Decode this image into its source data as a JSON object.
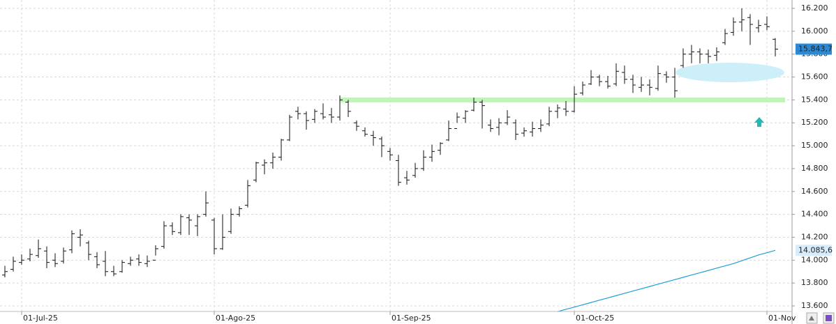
{
  "chart_data": {
    "type": "ohlc",
    "categories": [
      null,
      null,
      "01-Jul-25",
      null,
      null,
      null,
      null,
      null,
      null,
      null,
      null,
      null,
      null,
      null,
      null,
      null,
      null,
      null,
      null,
      null,
      null,
      null,
      null,
      null,
      null,
      "01-Ago-25",
      null,
      null,
      null,
      null,
      null,
      null,
      null,
      null,
      null,
      null,
      null,
      null,
      null,
      null,
      null,
      null,
      null,
      null,
      null,
      null,
      "01-Sep-25",
      null,
      null,
      null,
      null,
      null,
      null,
      null,
      null,
      null,
      null,
      null,
      null,
      null,
      null,
      null,
      null,
      null,
      null,
      null,
      null,
      null,
      "01-Oct-25",
      null,
      null,
      null,
      null,
      null,
      null,
      null,
      null,
      null,
      null,
      null,
      null,
      null,
      null,
      null,
      null,
      null,
      null,
      null,
      null,
      null,
      null,
      "01-Nov",
      null
    ],
    "ohlc": {
      "color": "#111111",
      "open": [
        13870,
        13920,
        13980,
        14010,
        14040,
        14080,
        14000,
        13990,
        14090,
        14200,
        14150,
        14030,
        13990,
        13900,
        13900,
        13970,
        14010,
        13970,
        14000,
        14120,
        14300,
        14240,
        14370,
        14300,
        14400,
        14350,
        14100,
        14250,
        14400,
        14480,
        14700,
        14830,
        14850,
        14900,
        15050,
        15300,
        15280,
        15230,
        15280,
        15270,
        15250,
        15380,
        15200,
        15130,
        15090,
        15060,
        14950,
        14870,
        14720,
        14740,
        14800,
        14900,
        14960,
        15050,
        15150,
        15240,
        15310,
        15380,
        15180,
        15160,
        15200,
        15200,
        15110,
        15120,
        15150,
        15190,
        15300,
        15320,
        15300,
        15460,
        15540,
        15600,
        15560,
        15540,
        15640,
        15580,
        15510,
        15530,
        15500,
        15620,
        15600,
        15700,
        15800,
        15820,
        15800,
        15790,
        15900,
        15990,
        16080,
        16120,
        16030,
        16060,
        15930
      ],
      "high": [
        13950,
        14030,
        14050,
        14100,
        14180,
        14120,
        14060,
        14110,
        14260,
        14270,
        14170,
        14070,
        14080,
        13950,
        14000,
        14030,
        14050,
        14040,
        14130,
        14340,
        14330,
        14400,
        14400,
        14400,
        14600,
        14370,
        14400,
        14450,
        14470,
        14700,
        14860,
        14880,
        14940,
        15060,
        15270,
        15340,
        15300,
        15320,
        15370,
        15330,
        15440,
        15400,
        15220,
        15160,
        15130,
        15080,
        14980,
        14920,
        14780,
        14850,
        14960,
        15010,
        15030,
        15220,
        15290,
        15310,
        15420,
        15400,
        15230,
        15240,
        15310,
        15230,
        15160,
        15210,
        15230,
        15340,
        15360,
        15390,
        15520,
        15560,
        15660,
        15620,
        15610,
        15720,
        15700,
        15620,
        15600,
        15580,
        15700,
        15650,
        15680,
        15850,
        15880,
        15850,
        15840,
        15860,
        16020,
        16120,
        16200,
        16150,
        16100,
        16130,
        15940
      ],
      "low": [
        13850,
        13900,
        13960,
        13990,
        14020,
        13930,
        13940,
        13970,
        14060,
        14120,
        14000,
        13930,
        13860,
        13860,
        13890,
        13950,
        13950,
        13940,
        14040,
        14100,
        14220,
        14220,
        14220,
        14210,
        14380,
        14050,
        14090,
        14230,
        14380,
        14460,
        14680,
        14750,
        14800,
        14870,
        15040,
        15230,
        15140,
        15200,
        15230,
        15200,
        15220,
        15250,
        15130,
        15080,
        15000,
        14900,
        14870,
        14650,
        14660,
        14720,
        14780,
        14860,
        14920,
        15040,
        15200,
        15200,
        15300,
        15150,
        15120,
        15090,
        15180,
        15050,
        15080,
        15080,
        15120,
        15170,
        15240,
        15260,
        15290,
        15440,
        15530,
        15520,
        15500,
        15520,
        15540,
        15460,
        15470,
        15440,
        15480,
        15550,
        15420,
        15680,
        15720,
        15720,
        15720,
        15740,
        15880,
        15960,
        16000,
        15880,
        15990,
        16010,
        15780
      ],
      "close": [
        13900,
        13990,
        14000,
        14050,
        14100,
        13980,
        13970,
        14080,
        14230,
        14220,
        14050,
        13960,
        13900,
        13880,
        13980,
        14000,
        13980,
        13990,
        14100,
        14300,
        14250,
        14380,
        14350,
        14380,
        14500,
        14100,
        14200,
        14400,
        14450,
        14650,
        14850,
        14850,
        14900,
        15050,
        15250,
        15280,
        15220,
        15300,
        15250,
        15250,
        15400,
        15300,
        15170,
        15100,
        15070,
        15000,
        14920,
        14680,
        14700,
        14800,
        14900,
        14950,
        15020,
        15150,
        15250,
        15300,
        15380,
        15350,
        15150,
        15200,
        15250,
        15100,
        15130,
        15150,
        15180,
        15300,
        15330,
        15300,
        15450,
        15530,
        15600,
        15560,
        15520,
        15650,
        15580,
        15530,
        15530,
        15510,
        15630,
        15600,
        15480,
        15800,
        15820,
        15800,
        15780,
        15820,
        15980,
        16080,
        16100,
        16060,
        16050,
        16040,
        15843.7
      ],
      "last_label": "15.843,7",
      "badge_color": "#2b8ad8"
    },
    "ma": {
      "color": "#1e9fd8",
      "values": [
        null,
        null,
        null,
        null,
        null,
        null,
        null,
        null,
        null,
        null,
        null,
        null,
        null,
        null,
        null,
        null,
        null,
        null,
        null,
        null,
        null,
        null,
        null,
        null,
        null,
        null,
        null,
        null,
        null,
        null,
        null,
        null,
        null,
        null,
        null,
        null,
        null,
        null,
        null,
        null,
        null,
        null,
        null,
        null,
        null,
        null,
        null,
        null,
        null,
        null,
        null,
        null,
        null,
        null,
        null,
        null,
        null,
        null,
        null,
        null,
        null,
        null,
        null,
        null,
        null,
        null,
        13550,
        13570,
        13590,
        13610,
        13630,
        13650,
        13670,
        13690,
        13710,
        13730,
        13750,
        13770,
        13790,
        13810,
        13830,
        13850,
        13870,
        13890,
        13910,
        13930,
        13950,
        13970,
        13995,
        14020,
        14045,
        14065,
        14085.6
      ],
      "last_label": "14.085,6",
      "badge_color": "#d9ecfb"
    },
    "level": 15400,
    "level_color": "#c4f2bd",
    "ylim": [
      13442,
      16273
    ],
    "yticks": [
      {
        "value": 13600,
        "label": "13.600"
      },
      {
        "value": 13800,
        "label": "13.800"
      },
      {
        "value": 14000,
        "label": "14.000"
      },
      {
        "value": 14200,
        "label": "14.200"
      },
      {
        "value": 14400,
        "label": "14.400"
      },
      {
        "value": 14600,
        "label": "14.600"
      },
      {
        "value": 14800,
        "label": "14.800"
      },
      {
        "value": 15000,
        "label": "15.000"
      },
      {
        "value": 15200,
        "label": "15.200"
      },
      {
        "value": 15400,
        "label": "15.400"
      },
      {
        "value": 15600,
        "label": "15.600"
      },
      {
        "value": 15800,
        "label": "15.800"
      },
      {
        "value": 16000,
        "label": "16.000"
      },
      {
        "value": 16200,
        "label": "16.200"
      }
    ],
    "grid": true
  }
}
